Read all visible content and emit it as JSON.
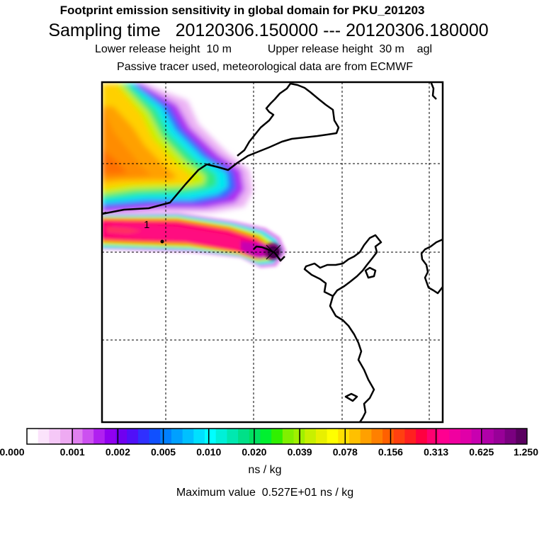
{
  "header": {
    "title": "Footprint emission sensitivity in global domain for PKU_201203",
    "sampling_label": "Sampling time",
    "sampling_start": "20120306.150000",
    "sampling_sep": "---",
    "sampling_end": "20120306.180000",
    "lower_label": "Lower release height",
    "lower_value": "10 m",
    "upper_label": "Upper release height",
    "upper_value": "30 m",
    "height_ref": "agl",
    "tracer_note": "Passive tracer used, meteorological data are from ECMWF"
  },
  "map": {
    "receptor_label": "1",
    "colors": {
      "frame": "#000000",
      "coast": "#000000",
      "grid": "#000000"
    }
  },
  "colorbar": {
    "ticks": [
      "0.000",
      "0.001",
      "0.002",
      "0.005",
      "0.010",
      "0.020",
      "0.039",
      "0.078",
      "0.156",
      "0.313",
      "0.625",
      "1.250"
    ],
    "colors": [
      "#ffffff",
      "#fbe3fb",
      "#f5c8f7",
      "#eeaaf2",
      "#e080f0",
      "#cc50f0",
      "#b020f0",
      "#9000f0",
      "#7000f0",
      "#5010f8",
      "#3030ff",
      "#1050ff",
      "#0080ff",
      "#00a0ff",
      "#00c0ff",
      "#00e0ff",
      "#00ffff",
      "#00f0d8",
      "#00e8b0",
      "#00e088",
      "#00e060",
      "#00f030",
      "#30f000",
      "#80f000",
      "#a0f000",
      "#c8f000",
      "#e8f000",
      "#ffff00",
      "#ffe000",
      "#ffc000",
      "#ffa000",
      "#ff8000",
      "#ff6000",
      "#ff4010",
      "#ff2020",
      "#ff0040",
      "#ff0070",
      "#ff0090",
      "#f000a0",
      "#e000a8",
      "#c800b0",
      "#b000a8",
      "#980098",
      "#7a0080",
      "#5a0060"
    ],
    "units": "ns / kg",
    "max_label": "Maximum value",
    "max_value": "0.527E+01",
    "max_units": "ns / kg"
  }
}
